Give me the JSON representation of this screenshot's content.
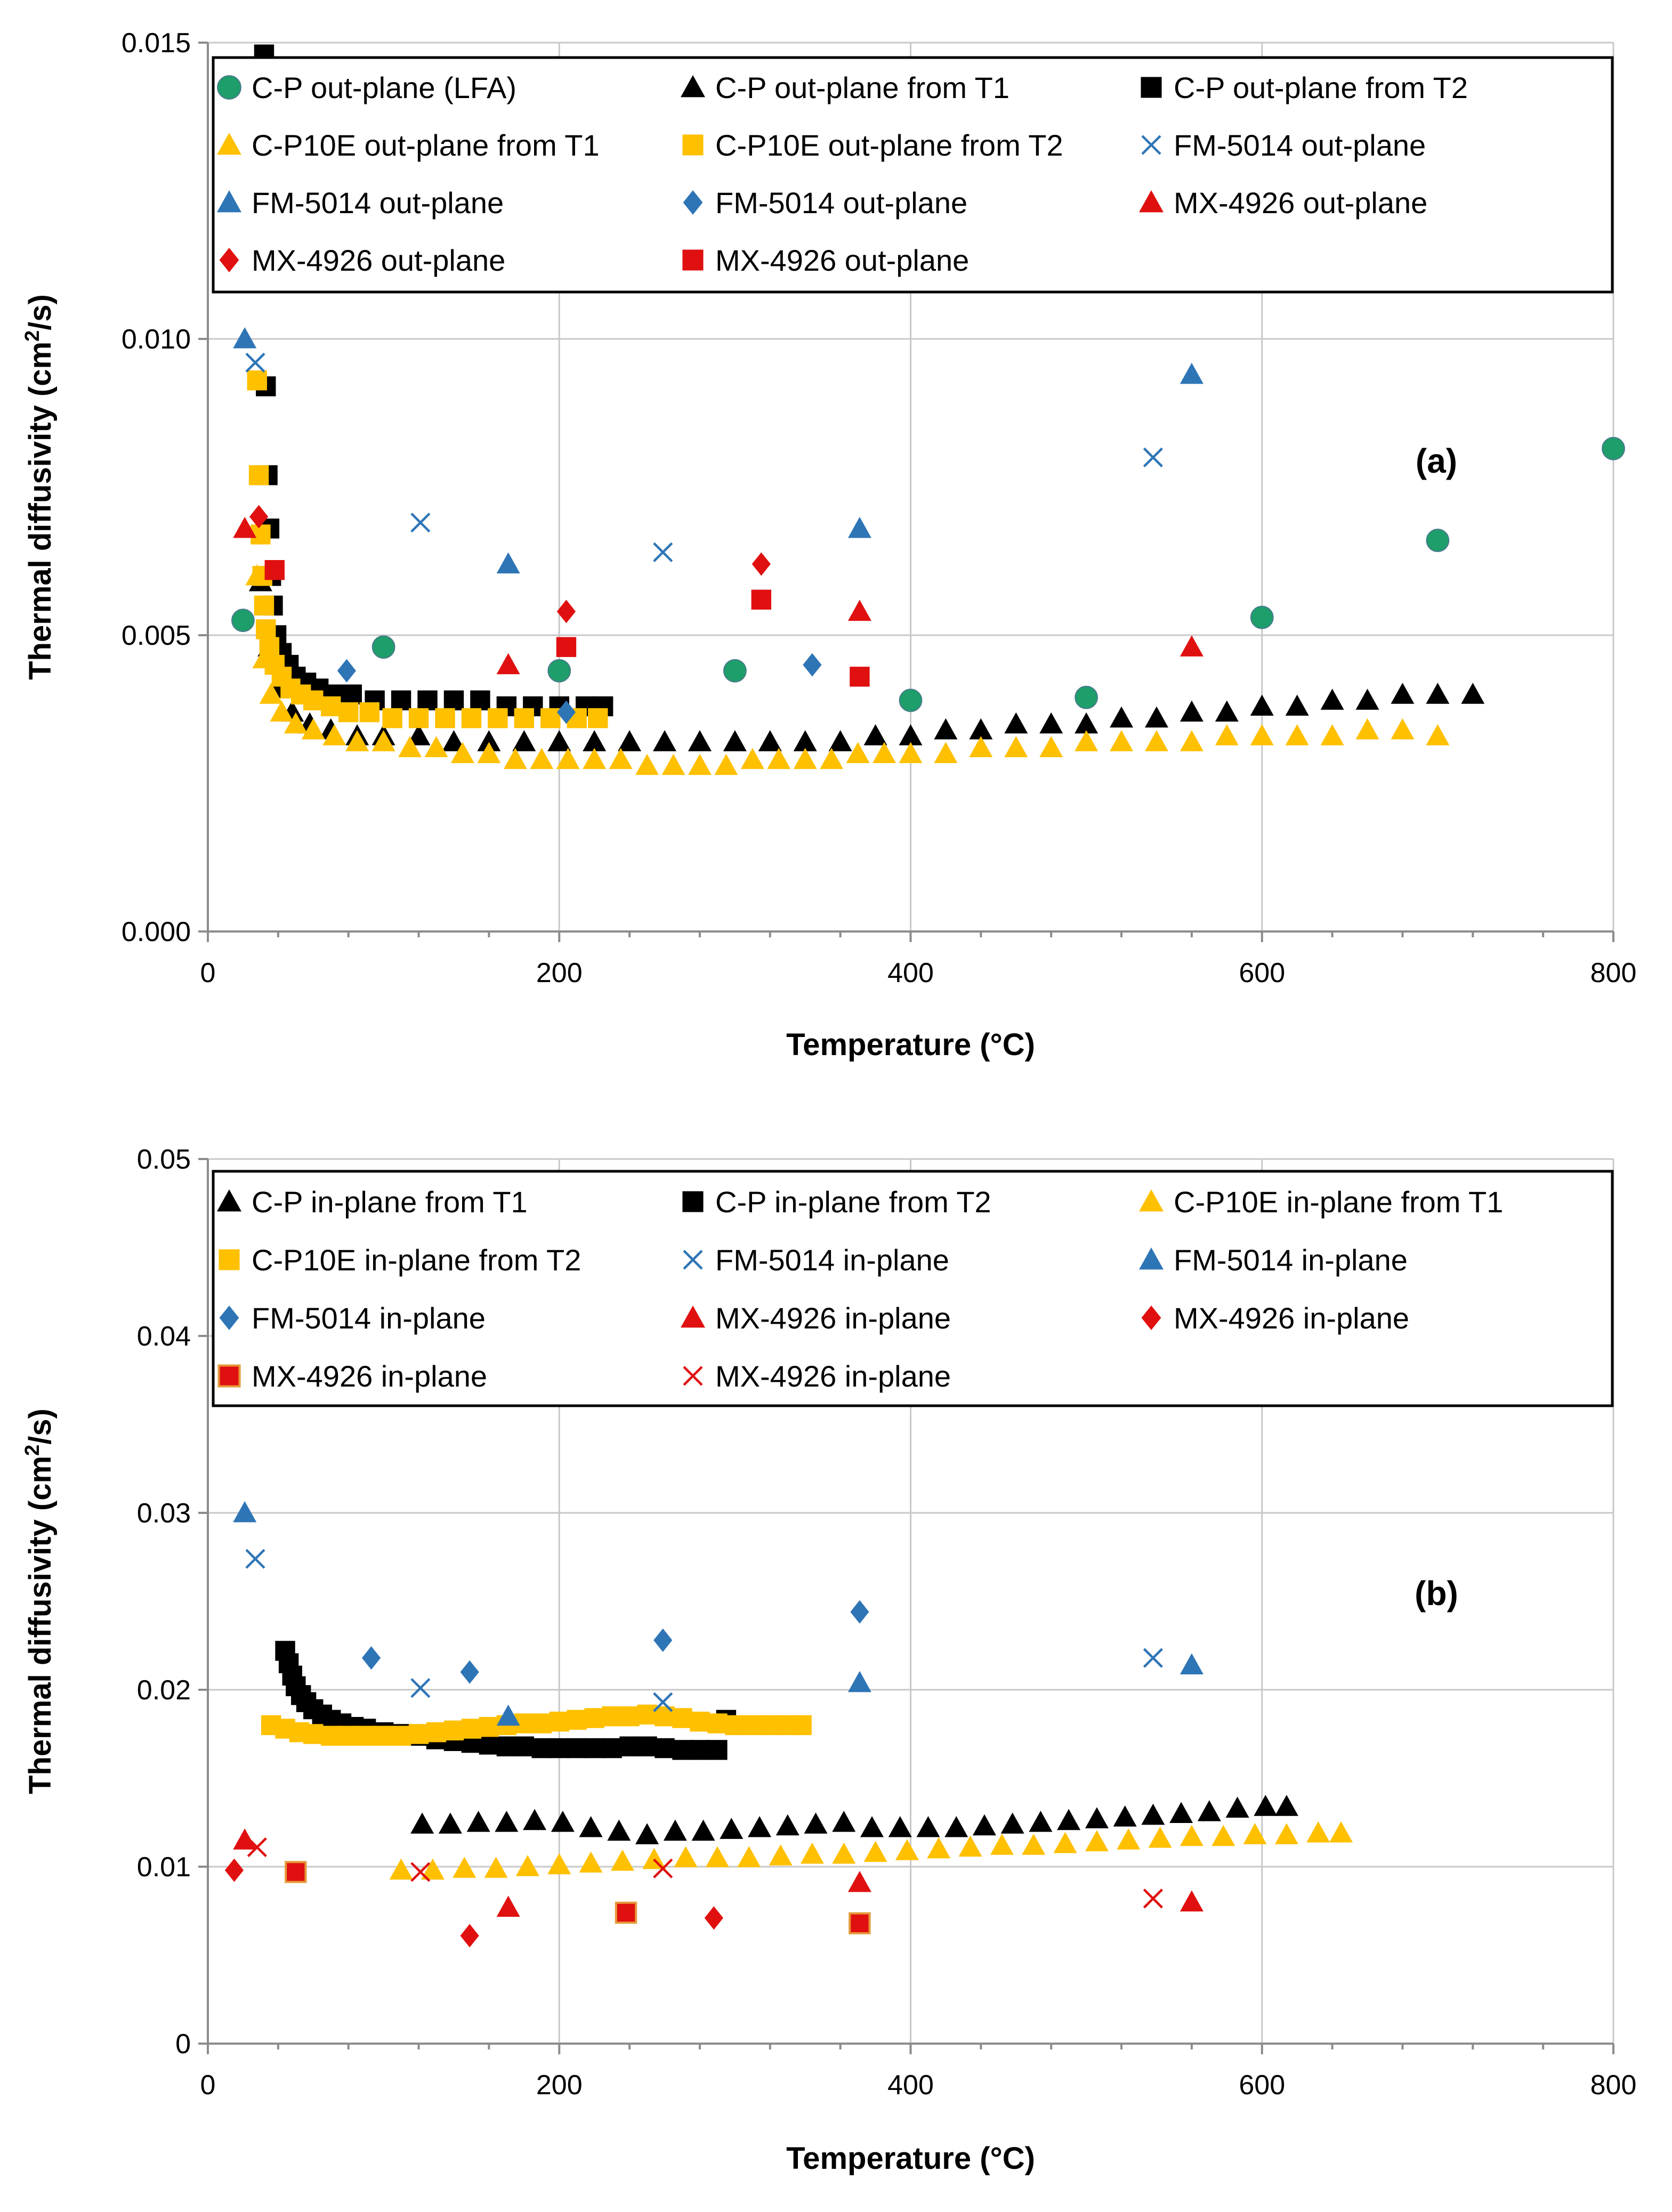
{
  "figure": "thermal diffusivity vs temperature",
  "colors": {
    "green": "#1E9E6A",
    "black": "#000000",
    "yellow": "#FFC000",
    "blue": "#2E75B6",
    "red": "#E01010"
  },
  "chart_data": [
    {
      "type": "scatter",
      "panel_label": "(a)",
      "xlabel": "Temperature (°C)",
      "ylabel_main": "Thermal diffusivity (cm",
      "ylabel_sup": "2",
      "ylabel_end": "/s)",
      "xlim": [
        0,
        800
      ],
      "ylim": [
        0,
        0.015
      ],
      "xticks": [
        "0",
        "200",
        "400",
        "600",
        "800"
      ],
      "yticks": [
        "0.000",
        "0.005",
        "0.010",
        "0.015"
      ],
      "grid": true,
      "legend_position": "top",
      "series": [
        {
          "name": "C-P out-plane (LFA)",
          "marker": "circle",
          "color": "#1E9E6A",
          "x": [
            20,
            100,
            200,
            300,
            400,
            500,
            600,
            700,
            800
          ],
          "y": [
            0.00525,
            0.0048,
            0.0044,
            0.0044,
            0.0039,
            0.00395,
            0.0053,
            0.0066,
            0.00815
          ]
        },
        {
          "name": "C-P out-plane from T1",
          "marker": "triangle",
          "color": "#000000",
          "x": [
            30,
            35,
            40,
            48,
            58,
            70,
            85,
            100,
            120,
            140,
            160,
            180,
            200,
            220,
            240,
            260,
            280,
            300,
            320,
            340,
            360,
            380,
            400,
            420,
            440,
            460,
            480,
            500,
            520,
            540,
            560,
            580,
            600,
            620,
            640,
            660,
            680,
            700,
            720
          ],
          "y": [
            0.0059,
            0.0048,
            0.0041,
            0.0037,
            0.0035,
            0.0034,
            0.0033,
            0.0033,
            0.0033,
            0.0032,
            0.0032,
            0.0032,
            0.0032,
            0.0032,
            0.0032,
            0.0032,
            0.0032,
            0.0032,
            0.0032,
            0.0032,
            0.0032,
            0.0033,
            0.0033,
            0.0034,
            0.0034,
            0.0035,
            0.0035,
            0.0035,
            0.0036,
            0.0036,
            0.0037,
            0.0037,
            0.0038,
            0.0038,
            0.0039,
            0.0039,
            0.004,
            0.004,
            0.004
          ]
        },
        {
          "name": "C-P out-plane from T2",
          "marker": "square",
          "color": "#000000",
          "x": [
            32,
            33,
            34,
            35,
            36,
            37,
            39,
            42,
            46,
            50,
            56,
            63,
            72,
            82,
            95,
            110,
            125,
            140,
            155,
            170,
            185,
            200,
            215,
            225
          ],
          "y": [
            0.0148,
            0.0092,
            0.0077,
            0.0068,
            0.006,
            0.0055,
            0.005,
            0.0047,
            0.0045,
            0.0043,
            0.0042,
            0.0041,
            0.004,
            0.004,
            0.0039,
            0.0039,
            0.0039,
            0.0039,
            0.0039,
            0.0038,
            0.0038,
            0.0038,
            0.0038,
            0.0038
          ]
        },
        {
          "name": "C-P10E out-plane from T1",
          "marker": "triangle",
          "color": "#FFC000",
          "x": [
            28,
            32,
            36,
            42,
            50,
            60,
            72,
            85,
            100,
            115,
            130,
            145,
            160,
            175,
            190,
            205,
            220,
            235,
            250,
            265,
            280,
            295,
            310,
            325,
            340,
            355,
            370,
            385,
            400,
            420,
            440,
            460,
            480,
            500,
            520,
            540,
            560,
            580,
            600,
            620,
            640,
            660,
            680,
            700
          ],
          "y": [
            0.006,
            0.0046,
            0.004,
            0.0037,
            0.0035,
            0.0034,
            0.0033,
            0.0032,
            0.0032,
            0.0031,
            0.0031,
            0.003,
            0.003,
            0.0029,
            0.0029,
            0.0029,
            0.0029,
            0.0029,
            0.0028,
            0.0028,
            0.0028,
            0.0028,
            0.0029,
            0.0029,
            0.0029,
            0.0029,
            0.003,
            0.003,
            0.003,
            0.003,
            0.0031,
            0.0031,
            0.0031,
            0.0032,
            0.0032,
            0.0032,
            0.0032,
            0.0033,
            0.0033,
            0.0033,
            0.0033,
            0.0034,
            0.0034,
            0.0033
          ]
        },
        {
          "name": "C-P10E out-plane from T2",
          "marker": "square",
          "color": "#FFC000",
          "x": [
            28,
            29,
            30,
            31,
            32,
            33,
            35,
            38,
            42,
            47,
            53,
            60,
            70,
            80,
            92,
            105,
            120,
            135,
            150,
            165,
            180,
            195,
            210,
            222
          ],
          "y": [
            0.0093,
            0.0077,
            0.0067,
            0.006,
            0.0055,
            0.0051,
            0.0048,
            0.0045,
            0.0043,
            0.0041,
            0.004,
            0.0039,
            0.0038,
            0.0037,
            0.0037,
            0.0036,
            0.0036,
            0.0036,
            0.0036,
            0.0036,
            0.0036,
            0.0036,
            0.0036,
            0.0036
          ]
        },
        {
          "name": "FM-5014 out-plane",
          "marker": "x",
          "color": "#2E75B6",
          "x": [
            27,
            121,
            259,
            538
          ],
          "y": [
            0.0096,
            0.0069,
            0.0064,
            0.008
          ]
        },
        {
          "name": "FM-5014 out-plane",
          "marker": "triangle",
          "color": "#2E75B6",
          "x": [
            21,
            171,
            371,
            560
          ],
          "y": [
            0.01,
            0.0062,
            0.0068,
            0.0094
          ]
        },
        {
          "name": "FM-5014 out-plane",
          "marker": "diamond",
          "color": "#2E75B6",
          "x": [
            79,
            204,
            344
          ],
          "y": [
            0.0044,
            0.0037,
            0.0045
          ]
        },
        {
          "name": "MX-4926 out-plane",
          "marker": "triangle",
          "color": "#E01010",
          "x": [
            21,
            171,
            371,
            560
          ],
          "y": [
            0.0068,
            0.0045,
            0.0054,
            0.0048
          ]
        },
        {
          "name": "MX-4926 out-plane",
          "marker": "diamond",
          "color": "#E01010",
          "x": [
            29,
            204,
            315
          ],
          "y": [
            0.007,
            0.0054,
            0.0062
          ]
        },
        {
          "name": "MX-4926 out-plane",
          "marker": "square",
          "color": "#E01010",
          "x": [
            38,
            204,
            315,
            371
          ],
          "y": [
            0.0061,
            0.0048,
            0.0056,
            0.0043
          ]
        }
      ]
    },
    {
      "type": "scatter",
      "panel_label": "(b)",
      "xlabel": "Temperature (°C)",
      "ylabel_main": "Thermal diffusivity (cm",
      "ylabel_sup": "2",
      "ylabel_end": "/s)",
      "xlim": [
        0,
        800
      ],
      "ylim": [
        0,
        0.05
      ],
      "xticks": [
        "0",
        "200",
        "400",
        "600",
        "800"
      ],
      "yticks": [
        "0",
        "0.01",
        "0.02",
        "0.03",
        "0.04",
        "0.05"
      ],
      "grid": true,
      "legend_position": "top",
      "series": [
        {
          "name": "C-P in-plane from T1",
          "marker": "triangle",
          "color": "#000000",
          "x": [
            122,
            138,
            154,
            170,
            186,
            202,
            218,
            234,
            250,
            266,
            282,
            298,
            314,
            330,
            346,
            362,
            378,
            394,
            410,
            426,
            442,
            458,
            474,
            490,
            506,
            522,
            538,
            554,
            570,
            586,
            602,
            614
          ],
          "y": [
            0.0124,
            0.0124,
            0.0125,
            0.0125,
            0.0126,
            0.0125,
            0.0122,
            0.012,
            0.0118,
            0.012,
            0.012,
            0.0121,
            0.0122,
            0.0123,
            0.0124,
            0.0125,
            0.0122,
            0.0122,
            0.0122,
            0.0122,
            0.0123,
            0.0124,
            0.0125,
            0.0126,
            0.0127,
            0.0128,
            0.0129,
            0.013,
            0.0131,
            0.0133,
            0.0134,
            0.0134
          ]
        },
        {
          "name": "C-P in-plane from T2",
          "marker": "square",
          "color": "#000000",
          "x": [
            44,
            46,
            48,
            50,
            53,
            56,
            60,
            65,
            70,
            76,
            83,
            90,
            100,
            110,
            120,
            130,
            140,
            150,
            160,
            170,
            180,
            190,
            200,
            210,
            220,
            230,
            240,
            250,
            260,
            270,
            280,
            290,
            295
          ],
          "y": [
            0.0222,
            0.0215,
            0.0208,
            0.0202,
            0.0197,
            0.0193,
            0.0189,
            0.0186,
            0.0183,
            0.0181,
            0.0179,
            0.0178,
            0.0176,
            0.0175,
            0.0174,
            0.0172,
            0.0171,
            0.017,
            0.0169,
            0.0168,
            0.0168,
            0.0167,
            0.0167,
            0.0167,
            0.0167,
            0.0167,
            0.0168,
            0.0168,
            0.0167,
            0.0166,
            0.0166,
            0.0166,
            0.0183
          ]
        },
        {
          "name": "C-P10E in-plane from T1",
          "marker": "triangle",
          "color": "#FFC000",
          "x": [
            110,
            128,
            146,
            164,
            182,
            200,
            218,
            236,
            254,
            272,
            290,
            308,
            326,
            344,
            362,
            380,
            398,
            416,
            434,
            452,
            470,
            488,
            506,
            524,
            542,
            560,
            578,
            596,
            614,
            632,
            645
          ],
          "y": [
            0.0098,
            0.0098,
            0.0099,
            0.0099,
            0.01,
            0.0101,
            0.0102,
            0.0103,
            0.0104,
            0.0105,
            0.0105,
            0.0105,
            0.0106,
            0.0107,
            0.0107,
            0.0108,
            0.0109,
            0.011,
            0.0111,
            0.0112,
            0.0112,
            0.0113,
            0.0114,
            0.0115,
            0.0116,
            0.0117,
            0.0117,
            0.0118,
            0.0118,
            0.0119,
            0.0119
          ]
        },
        {
          "name": "C-P10E in-plane from T2",
          "marker": "square",
          "color": "#FFC000",
          "x": [
            36,
            44,
            52,
            60,
            70,
            80,
            90,
            100,
            110,
            120,
            130,
            140,
            150,
            160,
            170,
            180,
            190,
            200,
            210,
            220,
            230,
            240,
            250,
            260,
            270,
            280,
            290,
            300,
            310,
            320,
            330,
            338
          ],
          "y": [
            0.018,
            0.0178,
            0.0176,
            0.0175,
            0.0174,
            0.0174,
            0.0174,
            0.0174,
            0.0174,
            0.0175,
            0.0176,
            0.0177,
            0.0178,
            0.0179,
            0.018,
            0.0181,
            0.0181,
            0.0182,
            0.0183,
            0.0184,
            0.0185,
            0.0185,
            0.0186,
            0.0185,
            0.0184,
            0.0182,
            0.0181,
            0.018,
            0.018,
            0.018,
            0.018,
            0.018
          ]
        },
        {
          "name": "FM-5014 in-plane",
          "marker": "x",
          "color": "#2E75B6",
          "x": [
            27,
            121,
            259,
            538
          ],
          "y": [
            0.0274,
            0.0201,
            0.0193,
            0.0218
          ]
        },
        {
          "name": "FM-5014 in-plane",
          "marker": "triangle",
          "color": "#2E75B6",
          "x": [
            21,
            171,
            371,
            560
          ],
          "y": [
            0.03,
            0.0185,
            0.0204,
            0.0214
          ]
        },
        {
          "name": "FM-5014 in-plane",
          "marker": "diamond",
          "color": "#2E75B6",
          "x": [
            93,
            149,
            259,
            371
          ],
          "y": [
            0.0218,
            0.021,
            0.0228,
            0.0244
          ]
        },
        {
          "name": "MX-4926 in-plane",
          "marker": "triangle",
          "color": "#E01010",
          "x": [
            21,
            171,
            371,
            560
          ],
          "y": [
            0.0115,
            0.0077,
            0.0091,
            0.008
          ]
        },
        {
          "name": "MX-4926 in-plane",
          "marker": "diamond",
          "color": "#E01010",
          "x": [
            15,
            149,
            288
          ],
          "y": [
            0.0098,
            0.0061,
            0.0071
          ]
        },
        {
          "name": "MX-4926 in-plane",
          "marker": "square-outline",
          "color": "#E01010",
          "x": [
            50,
            238,
            371
          ],
          "y": [
            0.0097,
            0.0074,
            0.0068
          ]
        },
        {
          "name": "MX-4926 in-plane",
          "marker": "x",
          "color": "#E01010",
          "x": [
            28,
            121,
            259,
            538
          ],
          "y": [
            0.0111,
            0.0097,
            0.0099,
            0.0082
          ]
        }
      ]
    }
  ]
}
